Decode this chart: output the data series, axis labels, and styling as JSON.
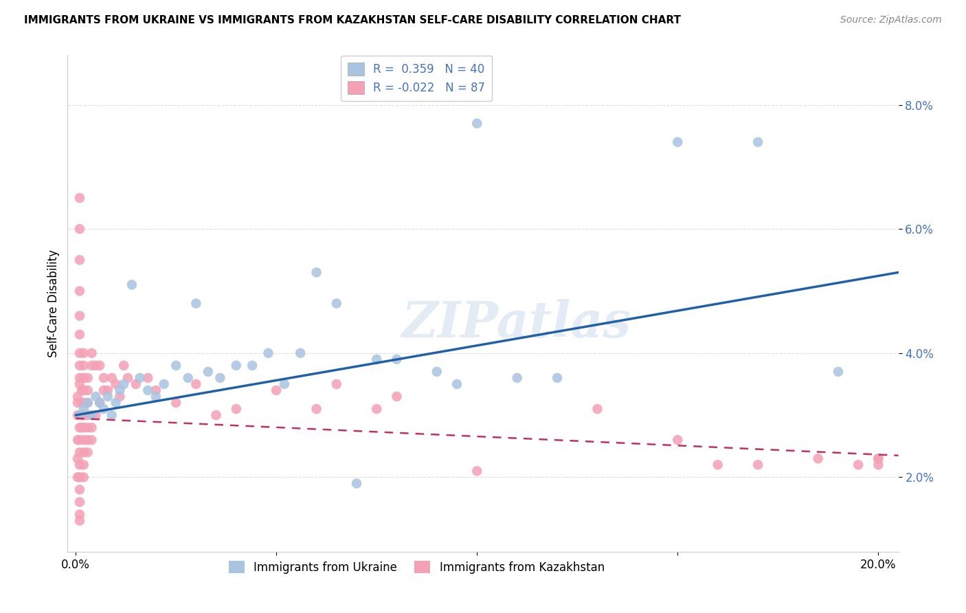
{
  "title": "IMMIGRANTS FROM UKRAINE VS IMMIGRANTS FROM KAZAKHSTAN SELF-CARE DISABILITY CORRELATION CHART",
  "source": "Source: ZipAtlas.com",
  "ylabel": "Self-Care Disability",
  "xlim": [
    -0.002,
    0.205
  ],
  "ylim": [
    0.008,
    0.088
  ],
  "yticks": [
    0.02,
    0.04,
    0.06,
    0.08
  ],
  "ytick_labels": [
    "2.0%",
    "4.0%",
    "6.0%",
    "8.0%"
  ],
  "xticks": [
    0.0,
    0.05,
    0.1,
    0.15,
    0.2
  ],
  "xtick_labels": [
    "0.0%",
    "",
    "",
    "",
    "20.0%"
  ],
  "ukraine_R": 0.359,
  "ukraine_N": 40,
  "kazakhstan_R": -0.022,
  "kazakhstan_N": 87,
  "ukraine_color": "#a8c4e0",
  "ukraine_line_color": "#2060a8",
  "kazakhstan_color": "#f4a0b5",
  "kazakhstan_line_color": "#c03060",
  "watermark": "ZIPatlas",
  "ukraine_x": [
    0.001,
    0.002,
    0.003,
    0.004,
    0.005,
    0.006,
    0.007,
    0.008,
    0.009,
    0.01,
    0.011,
    0.012,
    0.014,
    0.016,
    0.018,
    0.02,
    0.022,
    0.025,
    0.028,
    0.03,
    0.033,
    0.036,
    0.04,
    0.044,
    0.048,
    0.052,
    0.056,
    0.06,
    0.065,
    0.07,
    0.075,
    0.08,
    0.09,
    0.095,
    0.1,
    0.11,
    0.12,
    0.15,
    0.17,
    0.19
  ],
  "ukraine_y": [
    0.03,
    0.031,
    0.032,
    0.03,
    0.033,
    0.032,
    0.031,
    0.033,
    0.03,
    0.032,
    0.034,
    0.035,
    0.051,
    0.036,
    0.034,
    0.033,
    0.035,
    0.038,
    0.036,
    0.048,
    0.037,
    0.036,
    0.038,
    0.038,
    0.04,
    0.035,
    0.04,
    0.053,
    0.048,
    0.019,
    0.039,
    0.039,
    0.037,
    0.035,
    0.077,
    0.036,
    0.036,
    0.074,
    0.074,
    0.037
  ],
  "kazakhstan_x": [
    0.0005,
    0.0005,
    0.0005,
    0.0005,
    0.0005,
    0.0005,
    0.001,
    0.001,
    0.001,
    0.001,
    0.001,
    0.001,
    0.001,
    0.001,
    0.001,
    0.001,
    0.001,
    0.001,
    0.001,
    0.001,
    0.001,
    0.001,
    0.001,
    0.001,
    0.001,
    0.001,
    0.0015,
    0.0015,
    0.0015,
    0.0015,
    0.002,
    0.002,
    0.002,
    0.002,
    0.002,
    0.002,
    0.002,
    0.002,
    0.002,
    0.002,
    0.002,
    0.002,
    0.003,
    0.003,
    0.003,
    0.003,
    0.003,
    0.003,
    0.003,
    0.004,
    0.004,
    0.004,
    0.004,
    0.005,
    0.005,
    0.006,
    0.006,
    0.007,
    0.007,
    0.008,
    0.009,
    0.01,
    0.011,
    0.012,
    0.013,
    0.015,
    0.018,
    0.02,
    0.025,
    0.03,
    0.035,
    0.04,
    0.05,
    0.06,
    0.065,
    0.075,
    0.08,
    0.1,
    0.13,
    0.15,
    0.16,
    0.17,
    0.185,
    0.195,
    0.2,
    0.2,
    0.2
  ],
  "kazakhstan_y": [
    0.033,
    0.032,
    0.03,
    0.026,
    0.023,
    0.02,
    0.035,
    0.036,
    0.038,
    0.04,
    0.043,
    0.046,
    0.05,
    0.055,
    0.06,
    0.065,
    0.03,
    0.028,
    0.026,
    0.024,
    0.022,
    0.02,
    0.018,
    0.016,
    0.014,
    0.013,
    0.034,
    0.032,
    0.03,
    0.028,
    0.04,
    0.038,
    0.036,
    0.034,
    0.032,
    0.03,
    0.028,
    0.026,
    0.024,
    0.022,
    0.02,
    0.03,
    0.036,
    0.034,
    0.032,
    0.03,
    0.028,
    0.026,
    0.024,
    0.04,
    0.038,
    0.028,
    0.026,
    0.038,
    0.03,
    0.032,
    0.038,
    0.036,
    0.034,
    0.034,
    0.036,
    0.035,
    0.033,
    0.038,
    0.036,
    0.035,
    0.036,
    0.034,
    0.032,
    0.035,
    0.03,
    0.031,
    0.034,
    0.031,
    0.035,
    0.031,
    0.033,
    0.021,
    0.031,
    0.026,
    0.022,
    0.022,
    0.023,
    0.022,
    0.023,
    0.022,
    0.023
  ],
  "ukraine_trend_x0": 0.0,
  "ukraine_trend_y0": 0.03,
  "ukraine_trend_x1": 0.205,
  "ukraine_trend_y1": 0.053,
  "kazakhstan_trend_x0": 0.0,
  "kazakhstan_trend_y0": 0.0295,
  "kazakhstan_trend_x1": 0.205,
  "kazakhstan_trend_y1": 0.0235
}
